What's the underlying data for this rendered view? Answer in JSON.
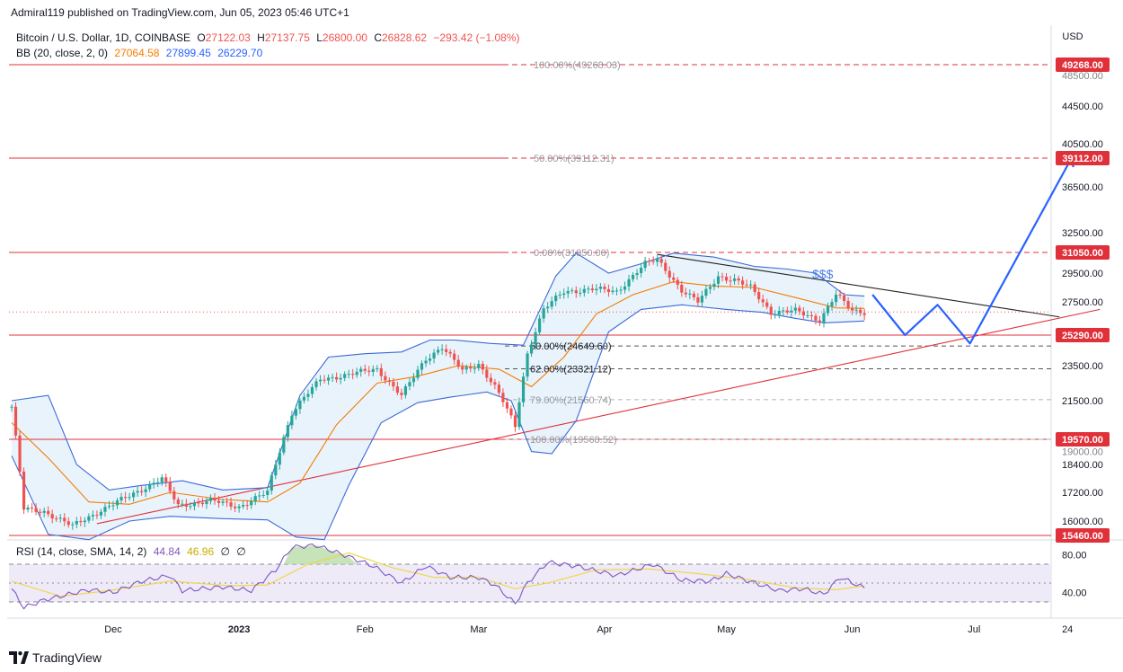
{
  "header": {
    "published_by": "Admiral119 published on TradingView.com, Jun 05, 2023 05:46 UTC+1"
  },
  "legend": {
    "symbol": "Bitcoin / U.S. Dollar, 1D, COINBASE",
    "o_label": "O",
    "o_value": "27122.03",
    "h_label": "H",
    "h_value": "27137.75",
    "l_label": "L",
    "l_value": "26800.00",
    "c_label": "C",
    "c_value": "26828.62",
    "change": "−293.42 (−1.08%)",
    "bb_label": "BB (20, close, 2, 0)",
    "bb_basis": "27064.58",
    "bb_upper": "27899.45",
    "bb_lower": "26229.70",
    "rsi_label": "RSI (14, close, SMA, 14, 2)",
    "rsi_value": "44.84",
    "rsi_sma": "46.96",
    "rsi_extra1": "∅",
    "rsi_extra2": "∅"
  },
  "footer": {
    "brand": "TradingView",
    "logo_icon": "tradingview-logo-icon"
  },
  "colors": {
    "up": "#26a69a",
    "down": "#ef5350",
    "bb_basis": "#f57c00",
    "bb_band": "#3a6ad8",
    "bb_fill": "#e9f3fb",
    "level": "#e0303a",
    "projection": "#2962ff",
    "rsi_line": "#7e57c2",
    "rsi_sma": "#f0d64a",
    "rsi_band": "#eeeaf8"
  },
  "chart_data": [
    {
      "type": "candlestick",
      "title": "Bitcoin / U.S. Dollar, 1D, COINBASE",
      "currency": "USD",
      "y_axis_label": "USD",
      "x_ticks": [
        "Dec",
        "2023",
        "Feb",
        "Mar",
        "Apr",
        "May",
        "Jun",
        "Jul",
        "24"
      ],
      "y_ticks": [
        "44500.00",
        "40500.00",
        "36500.00",
        "32500.00",
        "29500.00",
        "27500.00",
        "23500.00",
        "21500.00",
        "18400.00",
        "17200.00",
        "16000.00"
      ],
      "y_tick_labels_partial": [
        "48500.00",
        "19000.00"
      ],
      "price_tags": [
        {
          "label": "49268.00",
          "value": 49268
        },
        {
          "label": "39112.00",
          "value": 39112
        },
        {
          "label": "31050.00",
          "value": 31050
        },
        {
          "label": "25290.00",
          "value": 25290
        },
        {
          "label": "19570.00",
          "value": 19570
        },
        {
          "label": "15460.00",
          "value": 15460
        }
      ],
      "fib_levels_upper": [
        {
          "label": "100.00%(49268.03)",
          "value": 49268.03
        },
        {
          "label": "50.00%(39112.31)",
          "value": 39112.31
        },
        {
          "label": "0.00%(31050.00)",
          "value": 31050.0
        }
      ],
      "fib_levels_lower": [
        {
          "label": "50.00%(24649.60)",
          "value": 24649.6
        },
        {
          "label": "62.00%(23321.12)",
          "value": 23321.12
        },
        {
          "label": "79.00%(21560.74)",
          "value": 21560.74
        },
        {
          "label": "100.00%(19568.52)",
          "value": 19568.52
        }
      ],
      "annotation": "$$$",
      "trendlines": [
        {
          "name": "descending resistance",
          "from": [
            "2023-04-14",
            30900
          ],
          "to": [
            "2023-07-22",
            26500
          ]
        },
        {
          "name": "ascending support",
          "from": [
            "2022-11-27",
            15900
          ],
          "to": [
            "2023-08-01",
            27000
          ]
        }
      ],
      "projection_path": [
        [
          "2023-06-06",
          28000
        ],
        [
          "2023-06-14",
          25290
        ],
        [
          "2023-06-22",
          27300
        ],
        [
          "2023-06-30",
          24800
        ],
        [
          "2023-07-25",
          39112
        ]
      ],
      "ohlc_anchors": [
        [
          "2022-11-06",
          21200
        ],
        [
          "2022-11-09",
          16500
        ],
        [
          "2022-11-14",
          16400
        ],
        [
          "2022-11-21",
          15800
        ],
        [
          "2022-11-28",
          16450
        ],
        [
          "2022-12-05",
          17050
        ],
        [
          "2022-12-13",
          17800
        ],
        [
          "2022-12-17",
          16650
        ],
        [
          "2022-12-25",
          16850
        ],
        [
          "2023-01-01",
          16600
        ],
        [
          "2023-01-08",
          17200
        ],
        [
          "2023-01-14",
          20900
        ],
        [
          "2023-01-21",
          22700
        ],
        [
          "2023-01-28",
          23000
        ],
        [
          "2023-02-04",
          23300
        ],
        [
          "2023-02-10",
          21800
        ],
        [
          "2023-02-16",
          23900
        ],
        [
          "2023-02-20",
          24600
        ],
        [
          "2023-02-25",
          23200
        ],
        [
          "2023-03-01",
          23600
        ],
        [
          "2023-03-05",
          22300
        ],
        [
          "2023-03-10",
          20200
        ],
        [
          "2023-03-13",
          24200
        ],
        [
          "2023-03-17",
          27000
        ],
        [
          "2023-03-22",
          28200
        ],
        [
          "2023-03-29",
          28400
        ],
        [
          "2023-04-04",
          28200
        ],
        [
          "2023-04-11",
          30200
        ],
        [
          "2023-04-14",
          30500
        ],
        [
          "2023-04-20",
          28300
        ],
        [
          "2023-04-24",
          27500
        ],
        [
          "2023-04-29",
          29300
        ],
        [
          "2023-05-03",
          29000
        ],
        [
          "2023-05-07",
          28500
        ],
        [
          "2023-05-12",
          26800
        ],
        [
          "2023-05-18",
          26900
        ],
        [
          "2023-05-24",
          26300
        ],
        [
          "2023-05-28",
          28000
        ],
        [
          "2023-06-01",
          26900
        ],
        [
          "2023-06-04",
          26828
        ]
      ],
      "bb_upper_anchors": [
        [
          "2022-11-06",
          21500
        ],
        [
          "2022-11-15",
          21800
        ],
        [
          "2022-11-22",
          18400
        ],
        [
          "2022-11-30",
          17300
        ],
        [
          "2022-12-08",
          17500
        ],
        [
          "2022-12-18",
          17700
        ],
        [
          "2022-12-28",
          17300
        ],
        [
          "2023-01-08",
          17400
        ],
        [
          "2023-01-16",
          21800
        ],
        [
          "2023-01-23",
          24000
        ],
        [
          "2023-02-01",
          24200
        ],
        [
          "2023-02-10",
          24300
        ],
        [
          "2023-02-17",
          25000
        ],
        [
          "2023-02-23",
          25000
        ],
        [
          "2023-03-04",
          24800
        ],
        [
          "2023-03-12",
          24700
        ],
        [
          "2023-03-20",
          29300
        ],
        [
          "2023-03-25",
          31000
        ],
        [
          "2023-04-02",
          29500
        ],
        [
          "2023-04-10",
          30200
        ],
        [
          "2023-04-18",
          31000
        ],
        [
          "2023-04-28",
          30700
        ],
        [
          "2023-05-08",
          30000
        ],
        [
          "2023-05-16",
          29800
        ],
        [
          "2023-05-23",
          29500
        ],
        [
          "2023-05-30",
          28000
        ],
        [
          "2023-06-04",
          27900
        ]
      ],
      "bb_lower_anchors": [
        [
          "2022-11-06",
          18800
        ],
        [
          "2022-11-15",
          15500
        ],
        [
          "2022-11-25",
          15300
        ],
        [
          "2022-12-05",
          16000
        ],
        [
          "2022-12-15",
          16200
        ],
        [
          "2022-12-28",
          16100
        ],
        [
          "2023-01-08",
          16050
        ],
        [
          "2023-01-15",
          15400
        ],
        [
          "2023-01-22",
          15300
        ],
        [
          "2023-01-28",
          17500
        ],
        [
          "2023-02-05",
          20400
        ],
        [
          "2023-02-14",
          21400
        ],
        [
          "2023-02-22",
          21700
        ],
        [
          "2023-03-03",
          22000
        ],
        [
          "2023-03-09",
          21500
        ],
        [
          "2023-03-14",
          19000
        ],
        [
          "2023-03-19",
          18900
        ],
        [
          "2023-03-25",
          20500
        ],
        [
          "2023-04-02",
          25500
        ],
        [
          "2023-04-10",
          27000
        ],
        [
          "2023-04-20",
          27300
        ],
        [
          "2023-05-01",
          27000
        ],
        [
          "2023-05-10",
          26800
        ],
        [
          "2023-05-18",
          26400
        ],
        [
          "2023-05-25",
          26100
        ],
        [
          "2023-06-04",
          26230
        ]
      ],
      "bb_basis_anchors": [
        [
          "2022-11-06",
          20400
        ],
        [
          "2022-11-15",
          18700
        ],
        [
          "2022-11-25",
          16800
        ],
        [
          "2022-12-05",
          16700
        ],
        [
          "2022-12-15",
          17200
        ],
        [
          "2022-12-28",
          16900
        ],
        [
          "2023-01-08",
          16800
        ],
        [
          "2023-01-16",
          17600
        ],
        [
          "2023-01-25",
          20300
        ],
        [
          "2023-02-04",
          22500
        ],
        [
          "2023-02-14",
          22900
        ],
        [
          "2023-02-24",
          23500
        ],
        [
          "2023-03-06",
          23300
        ],
        [
          "2023-03-14",
          22300
        ],
        [
          "2023-03-22",
          24000
        ],
        [
          "2023-03-30",
          26700
        ],
        [
          "2023-04-08",
          28000
        ],
        [
          "2023-04-18",
          28900
        ],
        [
          "2023-04-28",
          28600
        ],
        [
          "2023-05-08",
          28500
        ],
        [
          "2023-05-18",
          27800
        ],
        [
          "2023-05-28",
          27100
        ],
        [
          "2023-06-04",
          27064
        ]
      ]
    },
    {
      "type": "line",
      "title": "RSI (14, close, SMA, 14, 2)",
      "y_ticks": [
        "80.00",
        "40.00"
      ],
      "levels": [
        70,
        50,
        30
      ],
      "rsi_anchors": [
        [
          "2022-11-06",
          44
        ],
        [
          "2022-11-09",
          24
        ],
        [
          "2022-11-14",
          32
        ],
        [
          "2022-11-25",
          43
        ],
        [
          "2022-12-01",
          40
        ],
        [
          "2022-12-08",
          52
        ],
        [
          "2022-12-15",
          58
        ],
        [
          "2022-12-18",
          42
        ],
        [
          "2022-12-28",
          46
        ],
        [
          "2023-01-04",
          42
        ],
        [
          "2023-01-10",
          64
        ],
        [
          "2023-01-14",
          88
        ],
        [
          "2023-01-20",
          90
        ],
        [
          "2023-01-28",
          78
        ],
        [
          "2023-02-03",
          68
        ],
        [
          "2023-02-10",
          50
        ],
        [
          "2023-02-16",
          68
        ],
        [
          "2023-02-22",
          56
        ],
        [
          "2023-03-01",
          56
        ],
        [
          "2023-03-05",
          48
        ],
        [
          "2023-03-10",
          28
        ],
        [
          "2023-03-13",
          50
        ],
        [
          "2023-03-18",
          72
        ],
        [
          "2023-03-25",
          68
        ],
        [
          "2023-04-04",
          58
        ],
        [
          "2023-04-13",
          70
        ],
        [
          "2023-04-20",
          53
        ],
        [
          "2023-04-27",
          52
        ],
        [
          "2023-05-01",
          60
        ],
        [
          "2023-05-08",
          50
        ],
        [
          "2023-05-14",
          42
        ],
        [
          "2023-05-20",
          44
        ],
        [
          "2023-05-25",
          38
        ],
        [
          "2023-05-29",
          56
        ],
        [
          "2023-06-04",
          44.84
        ]
      ],
      "sma_anchors": [
        [
          "2022-11-06",
          52
        ],
        [
          "2022-11-18",
          36
        ],
        [
          "2022-11-30",
          42
        ],
        [
          "2022-12-15",
          52
        ],
        [
          "2022-12-30",
          47
        ],
        [
          "2023-01-08",
          48
        ],
        [
          "2023-01-18",
          70
        ],
        [
          "2023-01-28",
          82
        ],
        [
          "2023-02-08",
          66
        ],
        [
          "2023-02-18",
          56
        ],
        [
          "2023-03-01",
          56
        ],
        [
          "2023-03-10",
          44
        ],
        [
          "2023-03-18",
          50
        ],
        [
          "2023-03-30",
          64
        ],
        [
          "2023-04-12",
          65
        ],
        [
          "2023-04-24",
          60
        ],
        [
          "2023-05-06",
          54
        ],
        [
          "2023-05-18",
          45
        ],
        [
          "2023-05-28",
          43
        ],
        [
          "2023-06-04",
          46.96
        ]
      ]
    }
  ]
}
